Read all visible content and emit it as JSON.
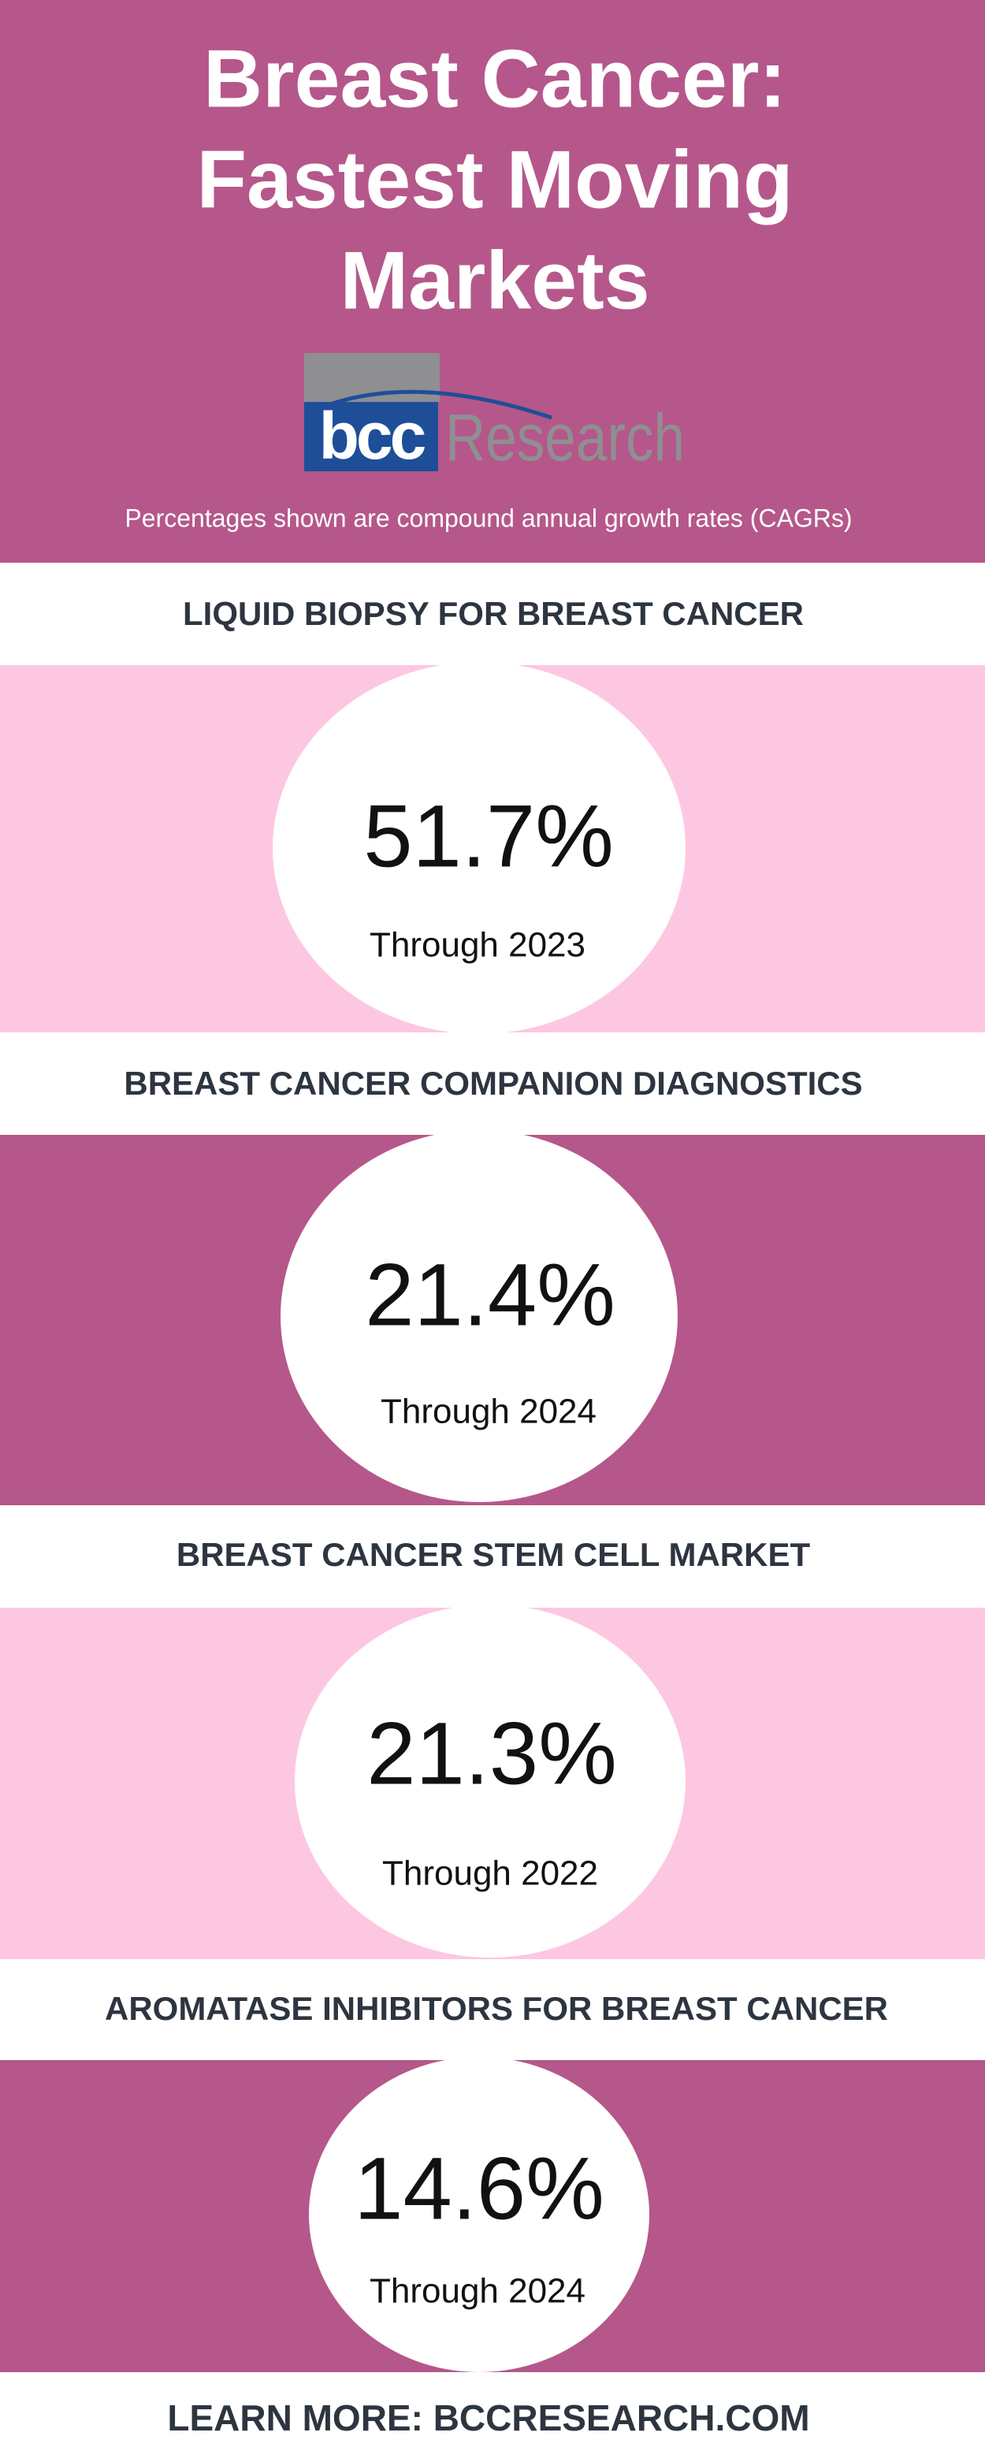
{
  "header": {
    "title_lines": [
      "Breast Cancer:",
      "Fastest Moving",
      "Markets"
    ],
    "logo": {
      "brand": "bcc",
      "word": "Research"
    },
    "subtitle": "Percentages shown are compound annual growth rates (CAGRs)"
  },
  "sections": [
    {
      "heading": "LIQUID BIOPSY FOR BREAST CANCER",
      "value": "51.7%",
      "period": "Through 2023"
    },
    {
      "heading": "BREAST CANCER COMPANION DIAGNOSTICS",
      "value": "21.4%",
      "period": "Through 2024"
    },
    {
      "heading": "BREAST CANCER STEM CELL MARKET",
      "value": "21.3%",
      "period": "Through 2022"
    },
    {
      "heading": "AROMATASE INHIBITORS FOR BREAST CANCER",
      "value": "14.6%",
      "period": "Through 2024"
    }
  ],
  "footer": "LEARN MORE: BCCRESEARCH.COM"
}
